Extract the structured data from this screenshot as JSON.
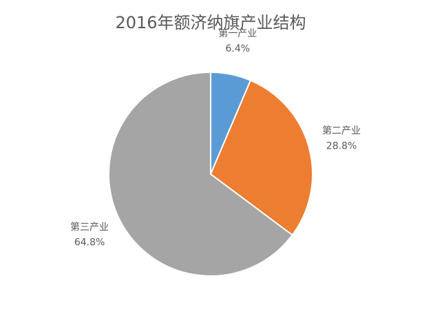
{
  "chart_data": {
    "type": "pie",
    "title": "2016年额济纳旗产业结构",
    "categories": [
      "第一产业",
      "第二产业",
      "第三产业"
    ],
    "values": [
      6.4,
      28.8,
      64.8
    ],
    "value_labels": [
      "6.4%",
      "28.8%",
      "64.8%"
    ],
    "colors": [
      "#5b9bd5",
      "#ed7d31",
      "#a5a5a5"
    ]
  }
}
